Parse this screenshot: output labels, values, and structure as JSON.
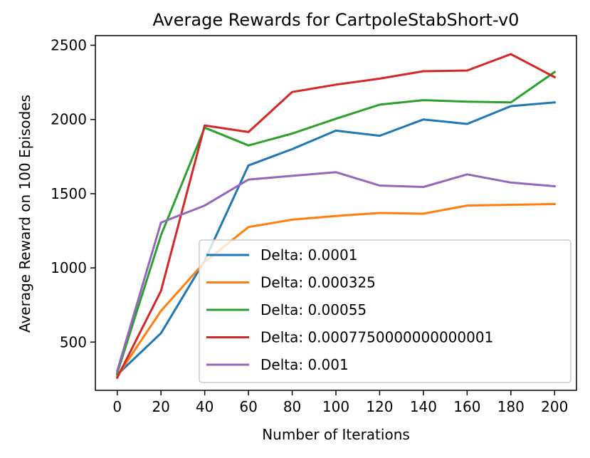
{
  "chart_data": {
    "type": "line",
    "title": "Average Rewards for CartpoleStabShort-v0",
    "xlabel": "Number of Iterations",
    "ylabel": "Average Reward on 100 Episodes",
    "x": [
      0,
      20,
      40,
      60,
      80,
      100,
      120,
      140,
      160,
      180,
      200
    ],
    "xlim": [
      -10,
      210
    ],
    "ylim": [
      175,
      2565
    ],
    "xticks": [
      0,
      20,
      40,
      60,
      80,
      100,
      120,
      140,
      160,
      180,
      200
    ],
    "yticks": [
      500,
      1000,
      1500,
      2000,
      2500
    ],
    "grid": false,
    "legend_position": "lower-right",
    "series": [
      {
        "name": "Delta: 0.0001",
        "color": "#1f77b4",
        "values": [
          280,
          560,
          1050,
          1690,
          1800,
          1925,
          1890,
          2000,
          1970,
          2090,
          2115
        ]
      },
      {
        "name": "Delta: 0.000325",
        "color": "#ff7f0e",
        "values": [
          270,
          710,
          1040,
          1275,
          1325,
          1350,
          1370,
          1365,
          1420,
          1425,
          1430
        ]
      },
      {
        "name": "Delta: 0.00055",
        "color": "#2ca02c",
        "values": [
          290,
          1220,
          1945,
          1825,
          1905,
          2005,
          2100,
          2130,
          2120,
          2115,
          2320
        ]
      },
      {
        "name": "Delta: 0.0007750000000000001",
        "color": "#d62728",
        "values": [
          260,
          845,
          1960,
          1915,
          2185,
          2235,
          2275,
          2325,
          2330,
          2440,
          2285
        ]
      },
      {
        "name": "Delta: 0.001",
        "color": "#9467bd",
        "values": [
          305,
          1305,
          1420,
          1595,
          1620,
          1645,
          1555,
          1545,
          1630,
          1575,
          1550
        ]
      }
    ]
  }
}
